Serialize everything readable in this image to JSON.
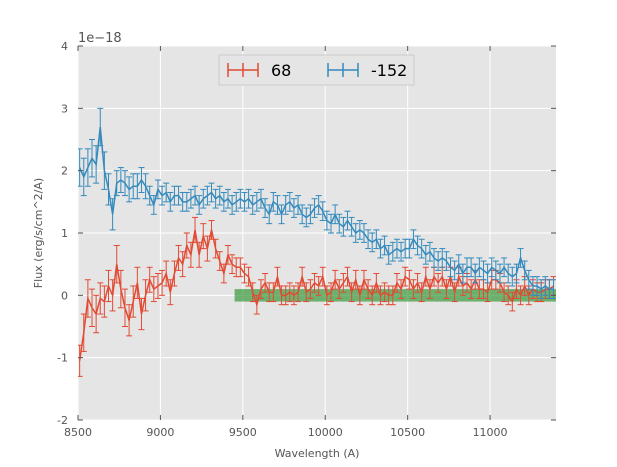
{
  "chart_data": {
    "type": "line",
    "title": "",
    "xlabel": "Wavelength (A)",
    "ylabel": "Flux (erg/s/cm^2/A)",
    "y_offset_label": "1e−18",
    "xlim": [
      8500,
      11400
    ],
    "ylim": [
      -2,
      4
    ],
    "x_ticks": [
      8500,
      9000,
      9500,
      10000,
      10500,
      11000
    ],
    "y_ticks": [
      -2,
      -1,
      0,
      1,
      2,
      3,
      4
    ],
    "grid": true,
    "legend_position": "upper-center",
    "background_color": "#e5e5e5",
    "highlight_band": {
      "x_start": 9450,
      "x_end": 11400,
      "y_low": -0.1,
      "y_high": 0.1,
      "color": "#3a9a3a"
    },
    "series": [
      {
        "name": "68",
        "color": "#e24a33",
        "x": [
          8510,
          8535,
          8560,
          8585,
          8610,
          8635,
          8660,
          8685,
          8710,
          8735,
          8760,
          8785,
          8810,
          8835,
          8860,
          8885,
          8910,
          8935,
          8960,
          8985,
          9010,
          9035,
          9060,
          9085,
          9110,
          9135,
          9160,
          9185,
          9210,
          9235,
          9260,
          9285,
          9310,
          9335,
          9360,
          9385,
          9410,
          9435,
          9460,
          9485,
          9510,
          9535,
          9560,
          9585,
          9610,
          9635,
          9660,
          9685,
          9710,
          9735,
          9760,
          9785,
          9810,
          9835,
          9860,
          9885,
          9910,
          9935,
          9960,
          9985,
          10010,
          10035,
          10060,
          10085,
          10110,
          10135,
          10160,
          10185,
          10210,
          10235,
          10260,
          10285,
          10310,
          10335,
          10360,
          10385,
          10410,
          10435,
          10460,
          10485,
          10510,
          10535,
          10560,
          10585,
          10610,
          10635,
          10660,
          10685,
          10710,
          10735,
          10760,
          10785,
          10810,
          10835,
          10860,
          10885,
          10910,
          10935,
          10960,
          10985,
          11010,
          11035,
          11060,
          11085,
          11110,
          11135,
          11160,
          11185,
          11210,
          11235,
          11260,
          11285,
          11310,
          11335,
          11360,
          11385
        ],
        "values": [
          -1.05,
          -0.6,
          -0.05,
          -0.2,
          -0.3,
          -0.05,
          -0.1,
          0.15,
          0.0,
          0.5,
          0.1,
          -0.2,
          -0.4,
          -0.1,
          0.2,
          -0.3,
          0.0,
          0.25,
          0.1,
          0.15,
          0.2,
          0.35,
          0.05,
          0.35,
          0.6,
          0.5,
          0.8,
          0.65,
          1.05,
          0.65,
          0.95,
          0.75,
          1.05,
          0.75,
          0.55,
          0.35,
          0.65,
          0.5,
          0.45,
          0.45,
          0.35,
          0.3,
          0.05,
          -0.15,
          0.1,
          0.2,
          0.05,
          0.05,
          0.3,
          0.0,
          0.0,
          0.05,
          0.0,
          0.05,
          0.3,
          0.05,
          0.1,
          0.2,
          0.15,
          0.3,
          0.0,
          0.05,
          0.25,
          0.1,
          0.2,
          0.3,
          0.05,
          0.25,
          0.0,
          0.25,
          0.1,
          0.0,
          0.2,
          0.0,
          0.05,
          0.0,
          0.0,
          0.2,
          0.1,
          0.3,
          0.25,
          0.1,
          0.2,
          0.05,
          0.3,
          0.1,
          0.3,
          0.2,
          0.3,
          0.1,
          0.3,
          0.05,
          0.3,
          0.15,
          0.2,
          0.1,
          0.25,
          0.1,
          0.1,
          0.05,
          0.25,
          0.25,
          0.2,
          0.05,
          0.0,
          -0.1,
          0.1,
          0.0,
          0.15,
          0.0,
          0.1,
          0.05,
          0.05,
          0.1,
          0.1,
          0.15
        ],
        "err": [
          0.25,
          0.3,
          0.3,
          0.3,
          0.3,
          0.25,
          0.25,
          0.25,
          0.25,
          0.3,
          0.3,
          0.3,
          0.25,
          0.25,
          0.25,
          0.25,
          0.25,
          0.2,
          0.2,
          0.2,
          0.2,
          0.2,
          0.2,
          0.2,
          0.2,
          0.2,
          0.2,
          0.2,
          0.2,
          0.2,
          0.2,
          0.2,
          0.15,
          0.15,
          0.15,
          0.15,
          0.15,
          0.15,
          0.15,
          0.15,
          0.15,
          0.15,
          0.15,
          0.15,
          0.15,
          0.15,
          0.15,
          0.15,
          0.15,
          0.15,
          0.15,
          0.15,
          0.15,
          0.15,
          0.15,
          0.15,
          0.15,
          0.15,
          0.15,
          0.15,
          0.15,
          0.15,
          0.15,
          0.15,
          0.15,
          0.15,
          0.15,
          0.15,
          0.15,
          0.15,
          0.15,
          0.15,
          0.15,
          0.15,
          0.15,
          0.15,
          0.15,
          0.15,
          0.15,
          0.15,
          0.15,
          0.15,
          0.15,
          0.15,
          0.15,
          0.15,
          0.15,
          0.15,
          0.15,
          0.15,
          0.15,
          0.15,
          0.15,
          0.15,
          0.15,
          0.15,
          0.15,
          0.15,
          0.15,
          0.15,
          0.15,
          0.15,
          0.15,
          0.15,
          0.15,
          0.15,
          0.15,
          0.15,
          0.15,
          0.15,
          0.15,
          0.15,
          0.15,
          0.15,
          0.15,
          0.15
        ]
      },
      {
        "name": "-152",
        "color": "#348abd",
        "x": [
          8510,
          8535,
          8560,
          8585,
          8610,
          8635,
          8660,
          8685,
          8710,
          8735,
          8760,
          8785,
          8810,
          8835,
          8860,
          8885,
          8910,
          8935,
          8960,
          8985,
          9010,
          9035,
          9060,
          9085,
          9110,
          9135,
          9160,
          9185,
          9210,
          9235,
          9260,
          9285,
          9310,
          9335,
          9360,
          9385,
          9410,
          9435,
          9460,
          9485,
          9510,
          9535,
          9560,
          9585,
          9610,
          9635,
          9660,
          9685,
          9710,
          9735,
          9760,
          9785,
          9810,
          9835,
          9860,
          9885,
          9910,
          9935,
          9960,
          9985,
          10010,
          10035,
          10060,
          10085,
          10110,
          10135,
          10160,
          10185,
          10210,
          10235,
          10260,
          10285,
          10310,
          10335,
          10360,
          10385,
          10410,
          10435,
          10460,
          10485,
          10510,
          10535,
          10560,
          10585,
          10610,
          10635,
          10660,
          10685,
          10710,
          10735,
          10760,
          10785,
          10810,
          10835,
          10860,
          10885,
          10910,
          10935,
          10960,
          10985,
          11010,
          11035,
          11060,
          11085,
          11110,
          11135,
          11160,
          11185,
          11210,
          11235,
          11260,
          11285,
          11310,
          11335,
          11360,
          11385
        ],
        "values": [
          2.05,
          1.9,
          2.05,
          2.2,
          2.1,
          2.7,
          2.0,
          1.7,
          1.3,
          1.8,
          1.85,
          1.8,
          1.7,
          1.75,
          1.75,
          1.85,
          1.75,
          1.6,
          1.45,
          1.7,
          1.6,
          1.65,
          1.5,
          1.6,
          1.6,
          1.5,
          1.5,
          1.55,
          1.6,
          1.45,
          1.55,
          1.6,
          1.65,
          1.55,
          1.6,
          1.5,
          1.55,
          1.45,
          1.5,
          1.55,
          1.5,
          1.55,
          1.45,
          1.5,
          1.55,
          1.4,
          1.3,
          1.5,
          1.45,
          1.3,
          1.45,
          1.5,
          1.4,
          1.45,
          1.3,
          1.25,
          1.3,
          1.4,
          1.45,
          1.35,
          1.2,
          1.15,
          1.3,
          1.15,
          1.1,
          1.2,
          1.1,
          1.0,
          1.05,
          1.0,
          0.9,
          0.85,
          0.9,
          0.75,
          0.8,
          0.65,
          0.7,
          0.75,
          0.7,
          0.75,
          0.75,
          0.9,
          0.8,
          0.75,
          0.65,
          0.7,
          0.6,
          0.55,
          0.6,
          0.55,
          0.45,
          0.4,
          0.5,
          0.35,
          0.45,
          0.45,
          0.35,
          0.45,
          0.4,
          0.35,
          0.45,
          0.4,
          0.35,
          0.45,
          0.35,
          0.3,
          0.35,
          0.6,
          0.4,
          0.25,
          0.15,
          0.15,
          0.1,
          0.15,
          0.1,
          0.1
        ],
        "err": [
          0.3,
          0.3,
          0.3,
          0.3,
          0.3,
          0.3,
          0.3,
          0.25,
          0.25,
          0.2,
          0.2,
          0.2,
          0.2,
          0.2,
          0.2,
          0.2,
          0.2,
          0.15,
          0.15,
          0.15,
          0.15,
          0.15,
          0.15,
          0.15,
          0.15,
          0.15,
          0.15,
          0.15,
          0.15,
          0.15,
          0.15,
          0.15,
          0.15,
          0.15,
          0.15,
          0.15,
          0.15,
          0.15,
          0.15,
          0.15,
          0.15,
          0.15,
          0.15,
          0.15,
          0.15,
          0.15,
          0.15,
          0.15,
          0.15,
          0.15,
          0.15,
          0.15,
          0.15,
          0.15,
          0.15,
          0.15,
          0.15,
          0.15,
          0.15,
          0.15,
          0.15,
          0.15,
          0.15,
          0.15,
          0.15,
          0.15,
          0.15,
          0.15,
          0.15,
          0.15,
          0.15,
          0.15,
          0.15,
          0.15,
          0.15,
          0.15,
          0.15,
          0.15,
          0.15,
          0.15,
          0.15,
          0.15,
          0.15,
          0.15,
          0.15,
          0.15,
          0.15,
          0.15,
          0.15,
          0.15,
          0.15,
          0.15,
          0.15,
          0.15,
          0.15,
          0.15,
          0.15,
          0.15,
          0.15,
          0.15,
          0.15,
          0.15,
          0.15,
          0.15,
          0.15,
          0.15,
          0.15,
          0.15,
          0.15,
          0.15,
          0.15,
          0.15,
          0.15,
          0.15,
          0.15,
          0.15
        ]
      }
    ]
  }
}
